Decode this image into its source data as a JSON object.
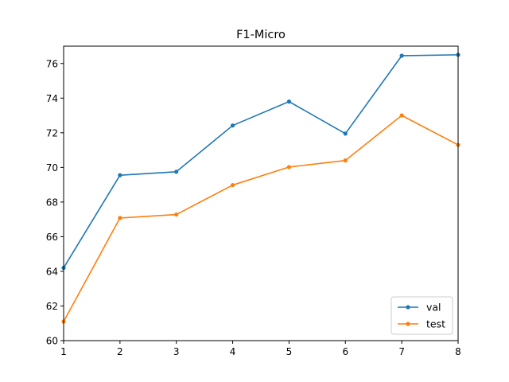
{
  "chart_data": {
    "type": "line",
    "title": "F1-Micro",
    "xlabel": "",
    "ylabel": "",
    "x": [
      1,
      2,
      3,
      4,
      5,
      6,
      7,
      8
    ],
    "xlim": [
      1,
      8
    ],
    "ylim": [
      60,
      77
    ],
    "xticks": [
      1,
      2,
      3,
      4,
      5,
      6,
      7,
      8
    ],
    "yticks": [
      60,
      62,
      64,
      66,
      68,
      70,
      72,
      74,
      76
    ],
    "grid": false,
    "legend_position": "lower-right",
    "series": [
      {
        "name": "val",
        "color": "#1f77b4",
        "marker": "circle",
        "values": [
          64.2,
          69.55,
          69.75,
          72.42,
          73.8,
          71.95,
          76.45,
          76.5
        ]
      },
      {
        "name": "test",
        "color": "#ff7f0e",
        "marker": "circle",
        "values": [
          61.1,
          67.08,
          67.28,
          68.98,
          70.02,
          70.4,
          73.0,
          71.3
        ]
      }
    ]
  }
}
